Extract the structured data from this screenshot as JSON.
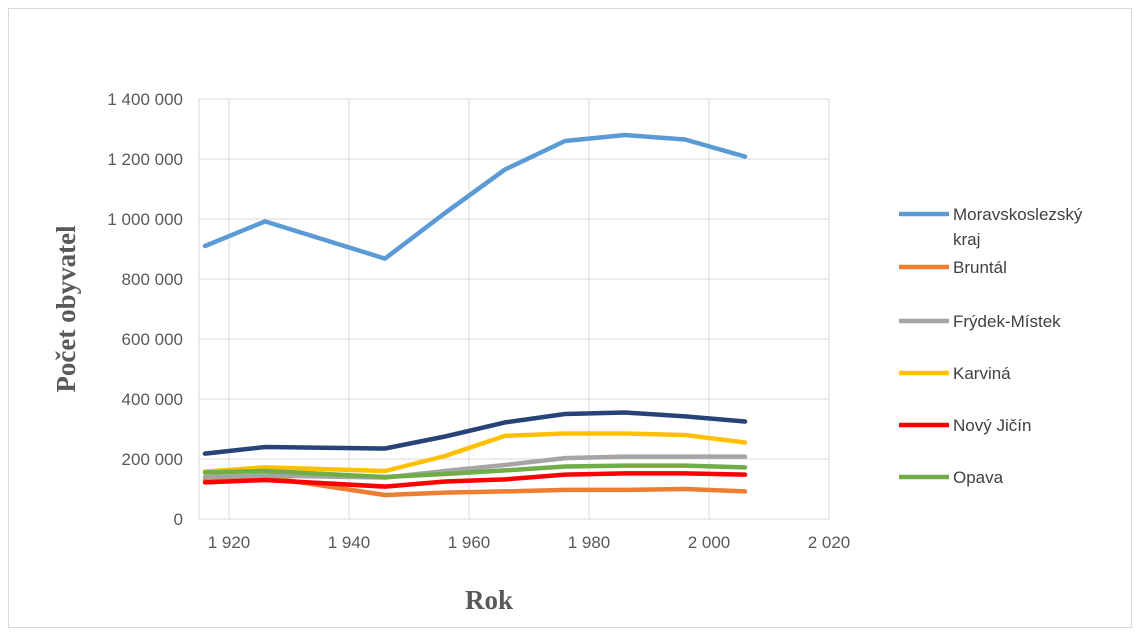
{
  "chart_data": {
    "type": "line",
    "title": "",
    "xlabel": "Rok",
    "ylabel": "Počet obyvatel",
    "xlim": [
      1915,
      2020
    ],
    "ylim": [
      0,
      1400000
    ],
    "grid": true,
    "legend_position": "right",
    "x_ticks": [
      {
        "value": 1920,
        "label": "1 920"
      },
      {
        "value": 1940,
        "label": "1 940"
      },
      {
        "value": 1960,
        "label": "1 960"
      },
      {
        "value": 1980,
        "label": "1 980"
      },
      {
        "value": 2000,
        "label": "2 000"
      },
      {
        "value": 2020,
        "label": "2 020"
      }
    ],
    "y_ticks": [
      {
        "value": 0,
        "label": "0"
      },
      {
        "value": 200000,
        "label": "200 000"
      },
      {
        "value": 400000,
        "label": "400 000"
      },
      {
        "value": 600000,
        "label": "600 000"
      },
      {
        "value": 800000,
        "label": "800 000"
      },
      {
        "value": 1000000,
        "label": "1 000 000"
      },
      {
        "value": 1200000,
        "label": "1 200 000"
      },
      {
        "value": 1400000,
        "label": "1 400 000"
      }
    ],
    "x": [
      1916,
      1926,
      1946,
      1956,
      1966,
      1976,
      1986,
      1996,
      2006
    ],
    "series": [
      {
        "name": "Moravskoslezský kraj",
        "color": "#5b9bd5",
        "in_legend": true,
        "values": [
          910000,
          992000,
          868000,
          1020000,
          1165000,
          1260000,
          1280000,
          1265000,
          1208000
        ]
      },
      {
        "name": "Bruntál",
        "color": "#ed7d31",
        "in_legend": true,
        "values": [
          130000,
          140000,
          80000,
          88000,
          92000,
          97000,
          97000,
          100000,
          92000
        ]
      },
      {
        "name": "Frýdek-Místek",
        "color": "#a5a5a5",
        "in_legend": true,
        "values": [
          140000,
          145000,
          138000,
          160000,
          180000,
          203000,
          208000,
          208000,
          208000
        ]
      },
      {
        "name": "Karviná",
        "color": "#ffc000",
        "in_legend": true,
        "values": [
          158000,
          172000,
          160000,
          210000,
          277000,
          285000,
          285000,
          280000,
          255000
        ]
      },
      {
        "name": "Nový Jičín",
        "color": "#ff0000",
        "in_legend": true,
        "values": [
          122000,
          130000,
          108000,
          125000,
          132000,
          148000,
          152000,
          152000,
          148000
        ]
      },
      {
        "name": "Opava",
        "color": "#70ad47",
        "in_legend": true,
        "values": [
          155000,
          160000,
          140000,
          150000,
          162000,
          175000,
          178000,
          178000,
          172000
        ]
      },
      {
        "name": "",
        "color": "#264478",
        "in_legend": false,
        "values": [
          218000,
          240000,
          235000,
          275000,
          322000,
          350000,
          355000,
          342000,
          325000
        ]
      }
    ]
  }
}
